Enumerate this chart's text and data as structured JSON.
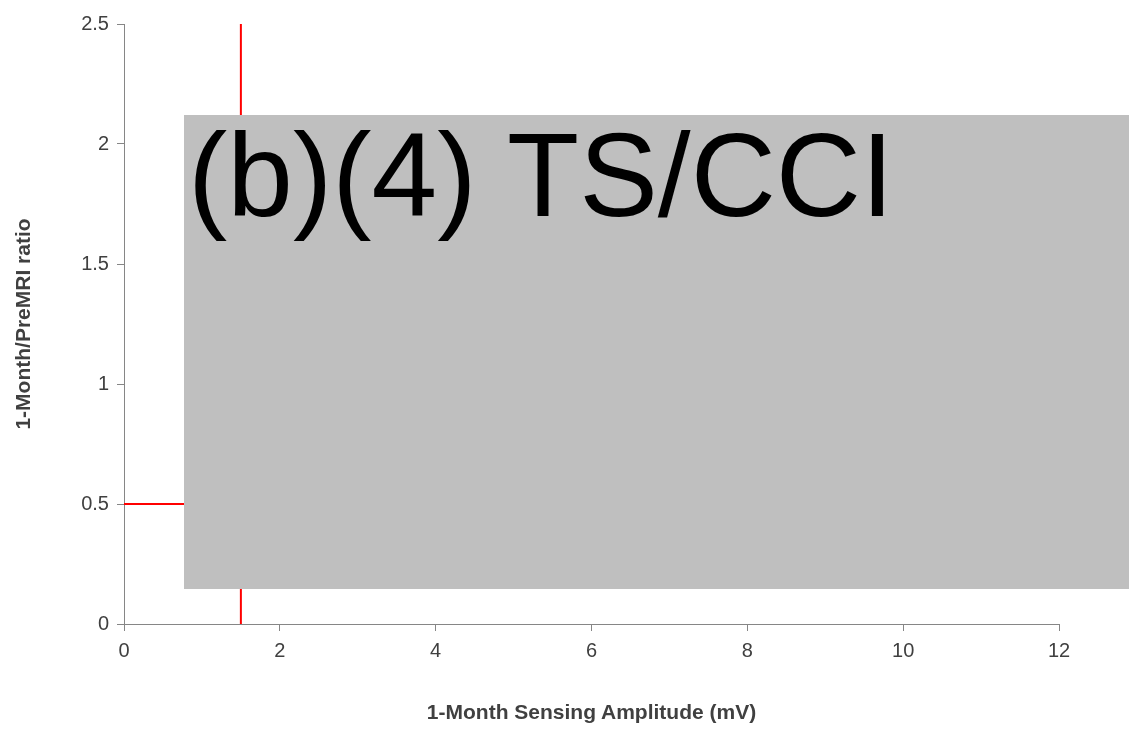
{
  "chart_data": {
    "type": "scatter",
    "xlabel": "1-Month Sensing Amplitude (mV)",
    "ylabel": "1-Month/PreMRI ratio",
    "xlim": [
      0,
      12
    ],
    "xticks": [
      0,
      2,
      4,
      6,
      8,
      10,
      12
    ],
    "ylim": [
      0,
      2.5
    ],
    "yticks": [
      0,
      0.5,
      1,
      1.5,
      2,
      2.5
    ],
    "grid": false,
    "legend": false,
    "ref_lines": [
      {
        "axis": "x",
        "value": 1.5,
        "color": "#ff0000"
      },
      {
        "axis": "y",
        "value": 0.5,
        "color": "#ff0000"
      }
    ],
    "annotations": [
      "(b)(4) TS/CCI"
    ]
  }
}
